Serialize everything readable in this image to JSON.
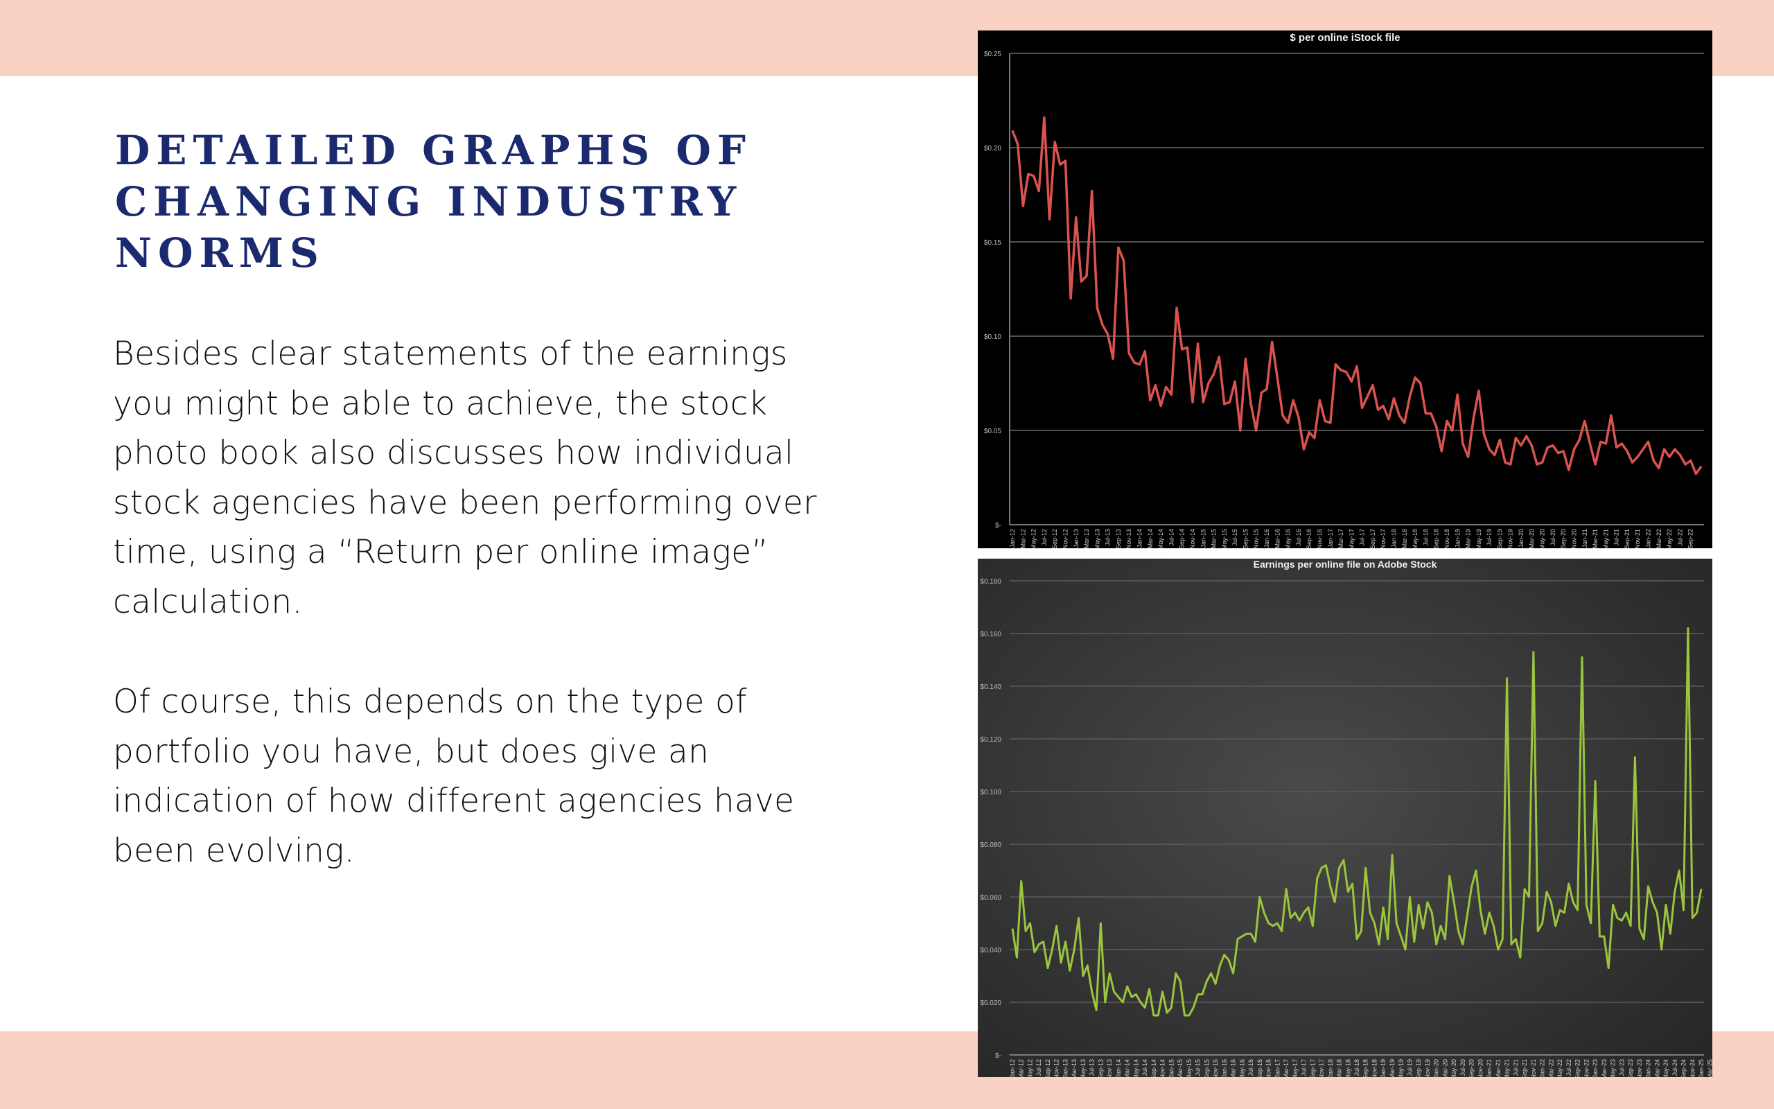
{
  "page": {
    "title_lines": [
      "DETAILED GRAPHS OF",
      "CHANGING INDUSTRY NORMS"
    ],
    "paragraph_1_lines": [
      "Besides clear statements of the earnings",
      "you might be able to achieve, the stock",
      "photo book also discusses how individual",
      "stock agencies have been performing over",
      "time, using a “Return per online image”",
      "calculation."
    ],
    "paragraph_2_lines": [
      "Of course, this depends on the type of",
      "portfolio you have, but does give an",
      "indication of how different agencies have",
      "been evolving."
    ],
    "colors": {
      "band": "#f9d2c3",
      "title": "#1b2a6e",
      "body_text": "#111111",
      "istock_line": "#d9534f",
      "adobe_line": "#9bc53d"
    }
  },
  "chart_data": [
    {
      "type": "line",
      "title": "$ per online iStock file",
      "xlabel": "",
      "ylabel": "",
      "ylim": [
        0,
        0.25
      ],
      "yticks": [
        "$-",
        "$0.05",
        "$0.10",
        "$0.15",
        "$0.20",
        "$0.25"
      ],
      "grid": true,
      "legend": null,
      "x_tick_labels": [
        "Jan-12",
        "Mar-12",
        "May-12",
        "Jul-12",
        "Sep-12",
        "Nov-12",
        "Jan-13",
        "Mar-13",
        "May-13",
        "Jul-13",
        "Sep-13",
        "Nov-13",
        "Jan-14",
        "Mar-14",
        "May-14",
        "Jul-14",
        "Sep-14",
        "Nov-14",
        "Jan-15",
        "Mar-15",
        "May-15",
        "Jul-15",
        "Sep-15",
        "Nov-15",
        "Jan-16",
        "Mar-16",
        "May-16",
        "Jul-16",
        "Sep-16",
        "Nov-16",
        "Jan-17",
        "Mar-17",
        "May-17",
        "Jul-17",
        "Sep-17",
        "Nov-17",
        "Jan-18",
        "Mar-18",
        "May-18",
        "Jul-18",
        "Sep-18",
        "Nov-18",
        "Jan-19",
        "Mar-19",
        "May-19",
        "Jul-19",
        "Sep-19",
        "Nov-19",
        "Jan-20",
        "Mar-20",
        "May-20",
        "Jul-20",
        "Sep-20",
        "Nov-20",
        "Jan-21",
        "Mar-21",
        "May-21",
        "Jul-21",
        "Sep-21",
        "Nov-21",
        "Jan-22",
        "Mar-22",
        "May-22",
        "Jul-22",
        "Sep-22"
      ],
      "x_start": "Jan-12",
      "x_end": "Sep-22",
      "frequency": "monthly",
      "series": [
        {
          "name": "$ per online iStock file",
          "color": "#d9534f",
          "values": [
            0.209,
            0.202,
            0.169,
            0.186,
            0.185,
            0.177,
            0.216,
            0.162,
            0.203,
            0.191,
            0.193,
            0.12,
            0.163,
            0.129,
            0.132,
            0.177,
            0.115,
            0.106,
            0.101,
            0.088,
            0.147,
            0.14,
            0.091,
            0.086,
            0.085,
            0.092,
            0.066,
            0.074,
            0.063,
            0.073,
            0.069,
            0.115,
            0.093,
            0.094,
            0.065,
            0.096,
            0.065,
            0.075,
            0.08,
            0.089,
            0.064,
            0.065,
            0.076,
            0.05,
            0.088,
            0.064,
            0.05,
            0.07,
            0.072,
            0.097,
            0.078,
            0.058,
            0.054,
            0.066,
            0.057,
            0.04,
            0.049,
            0.046,
            0.066,
            0.055,
            0.054,
            0.085,
            0.082,
            0.081,
            0.076,
            0.084,
            0.062,
            0.068,
            0.074,
            0.061,
            0.063,
            0.056,
            0.067,
            0.058,
            0.054,
            0.068,
            0.078,
            0.075,
            0.059,
            0.059,
            0.052,
            0.039,
            0.055,
            0.05,
            0.069,
            0.043,
            0.036,
            0.056,
            0.071,
            0.048,
            0.04,
            0.037,
            0.045,
            0.033,
            0.032,
            0.046,
            0.042,
            0.047,
            0.042,
            0.032,
            0.033,
            0.041,
            0.042,
            0.038,
            0.039,
            0.029,
            0.04,
            0.045,
            0.055,
            0.043,
            0.032,
            0.044,
            0.043,
            0.058,
            0.041,
            0.043,
            0.039,
            0.033,
            0.036,
            0.04,
            0.044,
            0.034,
            0.03,
            0.04,
            0.036,
            0.04,
            0.037,
            0.032,
            0.034,
            0.027,
            0.031
          ]
        }
      ]
    },
    {
      "type": "line",
      "title": "Earnings per online file on Adobe Stock",
      "xlabel": "",
      "ylabel": "",
      "ylim": [
        0,
        0.18
      ],
      "yticks": [
        "$-",
        "$0.020",
        "$0.040",
        "$0.060",
        "$0.080",
        "$0.100",
        "$0.120",
        "$0.140",
        "$0.160",
        "$0.180"
      ],
      "grid": true,
      "legend": null,
      "x_tick_labels": [
        "Jan-12",
        "Mar-12",
        "May-12",
        "Jul-12",
        "Sep-12",
        "Nov-12",
        "Jan-13",
        "Mar-13",
        "May-13",
        "Jul-13",
        "Sep-13",
        "Nov-13",
        "Jan-14",
        "Mar-14",
        "May-14",
        "Jul-14",
        "Sep-14",
        "Nov-14",
        "Jan-15",
        "Mar-15",
        "May-15",
        "Jul-15",
        "Sep-15",
        "Nov-15",
        "Jan-16",
        "Mar-16",
        "May-16",
        "Jul-16",
        "Sep-16",
        "Nov-16",
        "Jan-17",
        "Mar-17",
        "May-17",
        "Jul-17",
        "Sep-17",
        "Nov-17",
        "Jan-18",
        "Mar-18",
        "May-18",
        "Jul-18",
        "Sep-18",
        "Nov-18",
        "Jan-19",
        "Mar-19",
        "May-19",
        "Jul-19",
        "Sep-19",
        "Nov-19",
        "Jan-20",
        "Mar-20",
        "May-20",
        "Jul-20",
        "Sep-20",
        "Nov-20",
        "Jan-21",
        "Mar-21",
        "May-21",
        "Jul-21",
        "Sep-21",
        "Nov-21",
        "Jan-22",
        "Mar-22",
        "May-22",
        "Jul-22",
        "Sep-22",
        "Nov-22",
        "Jan-23",
        "Mar-23",
        "May-23",
        "Jul-23",
        "Sep-23",
        "Nov-23",
        "Jan-24",
        "Mar-24",
        "May-24",
        "Jul-24",
        "Sep-24",
        "Nov-24",
        "Jan-25",
        "Mar-25",
        "May-25",
        "Jul-25",
        "Sep-25"
      ],
      "x_start": "Jan-12",
      "x_end": "Sep-25",
      "frequency": "monthly",
      "series": [
        {
          "name": "Earnings per online file on Adobe Stock",
          "color": "#9bc53d",
          "values": [
            0.048,
            0.037,
            0.066,
            0.047,
            0.05,
            0.039,
            0.042,
            0.043,
            0.033,
            0.04,
            0.049,
            0.035,
            0.043,
            0.032,
            0.04,
            0.052,
            0.03,
            0.034,
            0.024,
            0.017,
            0.05,
            0.02,
            0.031,
            0.024,
            0.022,
            0.02,
            0.026,
            0.022,
            0.023,
            0.02,
            0.018,
            0.025,
            0.015,
            0.015,
            0.024,
            0.016,
            0.018,
            0.031,
            0.028,
            0.015,
            0.015,
            0.018,
            0.023,
            0.023,
            0.028,
            0.031,
            0.027,
            0.034,
            0.038,
            0.036,
            0.031,
            0.044,
            0.045,
            0.046,
            0.046,
            0.043,
            0.06,
            0.054,
            0.05,
            0.049,
            0.05,
            0.047,
            0.063,
            0.052,
            0.054,
            0.051,
            0.054,
            0.056,
            0.049,
            0.067,
            0.071,
            0.072,
            0.064,
            0.058,
            0.071,
            0.074,
            0.062,
            0.065,
            0.044,
            0.047,
            0.071,
            0.054,
            0.05,
            0.042,
            0.056,
            0.044,
            0.076,
            0.05,
            0.045,
            0.04,
            0.06,
            0.043,
            0.057,
            0.048,
            0.058,
            0.054,
            0.042,
            0.049,
            0.044,
            0.068,
            0.058,
            0.047,
            0.042,
            0.053,
            0.064,
            0.07,
            0.055,
            0.046,
            0.054,
            0.049,
            0.04,
            0.044,
            0.143,
            0.042,
            0.044,
            0.037,
            0.063,
            0.06,
            0.153,
            0.047,
            0.05,
            0.062,
            0.058,
            0.049,
            0.055,
            0.054,
            0.065,
            0.058,
            0.055,
            0.151,
            0.057,
            0.05,
            0.104,
            0.045,
            0.045,
            0.033,
            0.057,
            0.052,
            0.051,
            0.054,
            0.049,
            0.113,
            0.048,
            0.044,
            0.064,
            0.058,
            0.054,
            0.04,
            0.057,
            0.046,
            0.062,
            0.07,
            0.055,
            0.162,
            0.052,
            0.054,
            0.063
          ]
        }
      ]
    }
  ]
}
